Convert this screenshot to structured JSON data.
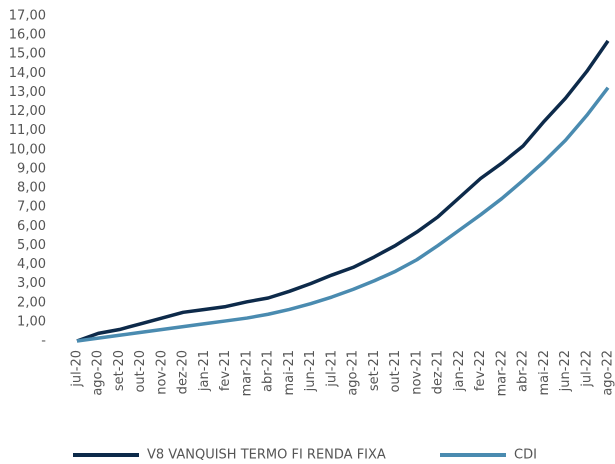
{
  "chart_data": {
    "type": "line",
    "categories": [
      "jul-20",
      "ago-20",
      "set-20",
      "out-20",
      "nov-20",
      "dez-20",
      "jan-21",
      "fev-21",
      "mar-21",
      "abr-21",
      "mai-21",
      "jun-21",
      "jul-21",
      "ago-21",
      "set-21",
      "out-21",
      "nov-21",
      "dez-21",
      "jan-22",
      "fev-22",
      "mar-22",
      "abr-22",
      "mai-22",
      "jun-22",
      "jul-22",
      "ago-22"
    ],
    "series": [
      {
        "name": "V8 VANQUISH TERMO FI RENDA FIXA",
        "color": "#0d2a4a",
        "values": [
          0,
          0.4,
          0.6,
          0.9,
          1.2,
          1.5,
          1.65,
          1.8,
          2.05,
          2.25,
          2.6,
          3.0,
          3.45,
          3.85,
          4.4,
          5.0,
          5.7,
          6.5,
          7.5,
          8.5,
          9.3,
          10.2,
          11.5,
          12.7,
          14.1,
          15.7
        ]
      },
      {
        "name": "CDI",
        "color": "#4a8bb0",
        "values": [
          0,
          0.15,
          0.3,
          0.45,
          0.6,
          0.75,
          0.9,
          1.05,
          1.2,
          1.4,
          1.65,
          1.95,
          2.3,
          2.7,
          3.15,
          3.65,
          4.25,
          5.0,
          5.8,
          6.6,
          7.45,
          8.4,
          9.4,
          10.5,
          11.8,
          13.25
        ]
      }
    ],
    "ylim": [
      0,
      17
    ],
    "yticks": [
      {
        "value": 0,
        "label": "-"
      },
      {
        "value": 1,
        "label": "1,00"
      },
      {
        "value": 2,
        "label": "2,00"
      },
      {
        "value": 3,
        "label": "3,00"
      },
      {
        "value": 4,
        "label": "4,00"
      },
      {
        "value": 5,
        "label": "5,00"
      },
      {
        "value": 6,
        "label": "6,00"
      },
      {
        "value": 7,
        "label": "7,00"
      },
      {
        "value": 8,
        "label": "8,00"
      },
      {
        "value": 9,
        "label": "9,00"
      },
      {
        "value": 10,
        "label": "10,00"
      },
      {
        "value": 11,
        "label": "11,00"
      },
      {
        "value": 12,
        "label": "12,00"
      },
      {
        "value": 13,
        "label": "13,00"
      },
      {
        "value": 14,
        "label": "14,00"
      },
      {
        "value": 15,
        "label": "15,00"
      },
      {
        "value": 16,
        "label": "16,00"
      },
      {
        "value": 17,
        "label": "17,00"
      }
    ],
    "grid": false,
    "legend": "bottom"
  }
}
